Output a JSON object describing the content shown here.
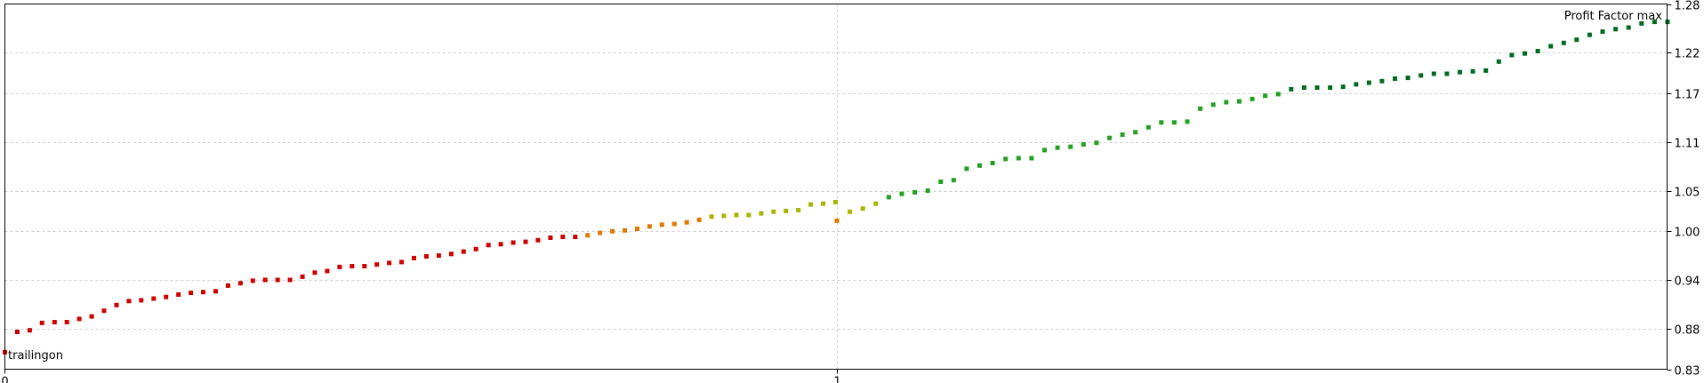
{
  "chart_data": {
    "type": "scatter",
    "title": "",
    "xlabel": "trailingon",
    "ylabel": "Profit Factor max",
    "xlim": [
      0,
      1
    ],
    "ylim": [
      0.83,
      1.28
    ],
    "x_ticks": [
      "0",
      "1"
    ],
    "y_ticks": [
      "0.83",
      "0.88",
      "0.94",
      "1.00",
      "1.05",
      "1.11",
      "1.17",
      "1.22",
      "1.28"
    ],
    "grid": true,
    "colors": {
      "low": "#cc0000",
      "mid": "#e07800",
      "transition": "#a8b400",
      "high": "#22a022",
      "top": "#006b20",
      "grid": "#cfcfcf",
      "frame": "#000000"
    },
    "series": [
      {
        "x": 0,
        "values": [
          0.851,
          0.876,
          0.878,
          0.887,
          0.888,
          0.888,
          0.892,
          0.895,
          0.902,
          0.909,
          0.914,
          0.915,
          0.917,
          0.919,
          0.922,
          0.924,
          0.925,
          0.926,
          0.933,
          0.936,
          0.939,
          0.94,
          0.94,
          0.94,
          0.944,
          0.949,
          0.951,
          0.956,
          0.957,
          0.957,
          0.959,
          0.961,
          0.962,
          0.967,
          0.969,
          0.97,
          0.972,
          0.975,
          0.978,
          0.983,
          0.984,
          0.986,
          0.987,
          0.989,
          0.992,
          0.993,
          0.993,
          0.995,
          0.998,
          1.0,
          1.001,
          1.003,
          1.006,
          1.008,
          1.009,
          1.011,
          1.014,
          1.018,
          1.019,
          1.02,
          1.02,
          1.022,
          1.024,
          1.025,
          1.026,
          1.033,
          1.034,
          1.036
        ]
      },
      {
        "x": 1,
        "values": [
          1.013,
          1.024,
          1.028,
          1.034,
          1.042,
          1.046,
          1.048,
          1.05,
          1.061,
          1.063,
          1.077,
          1.081,
          1.084,
          1.089,
          1.09,
          1.09,
          1.1,
          1.103,
          1.104,
          1.107,
          1.109,
          1.115,
          1.119,
          1.122,
          1.128,
          1.134,
          1.134,
          1.135,
          1.151,
          1.156,
          1.159,
          1.16,
          1.163,
          1.167,
          1.169,
          1.175,
          1.177,
          1.177,
          1.177,
          1.178,
          1.181,
          1.183,
          1.185,
          1.188,
          1.189,
          1.192,
          1.194,
          1.194,
          1.196,
          1.197,
          1.198,
          1.209,
          1.217,
          1.219,
          1.222,
          1.228,
          1.232,
          1.236,
          1.242,
          1.246,
          1.249,
          1.251,
          1.256,
          1.258,
          1.258
        ]
      }
    ]
  }
}
